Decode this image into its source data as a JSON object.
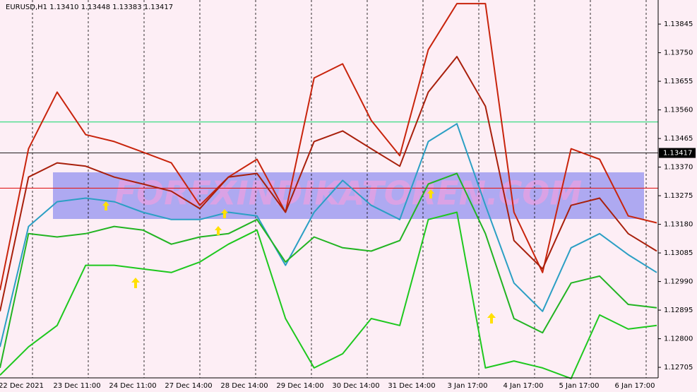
{
  "chart_data": {
    "type": "line",
    "title": "EURUSD,H1  1.13410 1.13448 1.13383 1.13417",
    "watermark": "FOREXINDIKATOREN.COM",
    "x": [
      0,
      1,
      2,
      3,
      4,
      5,
      6,
      7,
      8,
      9,
      10,
      11,
      12,
      13,
      14,
      15,
      16,
      17,
      18,
      19,
      20,
      21,
      22,
      23
    ],
    "xlim": [
      0,
      23
    ],
    "x_labels": [
      "22 Dec 2021",
      "23 Dec 11:00",
      "24 Dec 11:00",
      "27 Dec 14:00",
      "28 Dec 14:00",
      "29 Dec 14:00",
      "30 Dec 14:00",
      "31 Dec 14:00",
      "3 Jan 17:00",
      "4 Jan 17:00",
      "5 Jan 17:00",
      "6 Jan 17:00"
    ],
    "ylim": [
      1.1267,
      1.13925
    ],
    "yticks": [
      1.13845,
      {
        "value": 1.1375,
        "label": "1.13750"
      },
      1.13655,
      {
        "value": 1.1356,
        "label": "1.13560"
      },
      1.13465,
      {
        "value": 1.1337,
        "label": "1.13370"
      },
      1.13275,
      {
        "value": 1.1318,
        "label": "1.13180"
      },
      1.13085,
      {
        "value": 1.1299,
        "label": "1.12990"
      },
      1.12895,
      {
        "value": 1.128,
        "label": "1.12800"
      },
      1.12705
    ],
    "current_price": 1.13417,
    "levels": [
      {
        "value": 1.1352,
        "color": "#3ddc84"
      },
      {
        "value": 1.133,
        "color": "#e02020"
      }
    ],
    "series": [
      {
        "color": "#c8240c",
        "values": [
          1.12961,
          1.13431,
          1.13619,
          1.13478,
          1.13455,
          1.1342,
          1.13384,
          1.13243,
          1.13337,
          1.13396,
          1.1322,
          1.13666,
          1.13713,
          1.13525,
          1.13408,
          1.1376,
          1.13913,
          1.13913,
          1.1322,
          1.1302,
          1.13431,
          1.13396,
          1.13208,
          1.13185
        ]
      },
      {
        "color": "#a8200c",
        "values": [
          1.12891,
          1.13337,
          1.13384,
          1.13373,
          1.13337,
          1.13314,
          1.1329,
          1.13232,
          1.13337,
          1.13349,
          1.1322,
          1.13455,
          1.1349,
          1.13431,
          1.13373,
          1.13619,
          1.13737,
          1.13572,
          1.13126,
          1.13032,
          1.13243,
          1.13267,
          1.13149,
          1.13091
        ]
      },
      {
        "color": "#2b9fc4",
        "values": [
          1.12773,
          1.13173,
          1.13255,
          1.13267,
          1.13255,
          1.1322,
          1.13196,
          1.13196,
          1.1322,
          1.13208,
          1.13044,
          1.1322,
          1.13326,
          1.13243,
          1.13196,
          1.13455,
          1.13514,
          1.13243,
          1.12985,
          1.12891,
          1.13102,
          1.13149,
          1.13079,
          1.1302
        ]
      },
      {
        "color": "#22b422",
        "values": [
          1.12703,
          1.13149,
          1.13138,
          1.13149,
          1.13173,
          1.13161,
          1.13114,
          1.13138,
          1.13149,
          1.13196,
          1.13055,
          1.13138,
          1.13102,
          1.13091,
          1.13126,
          1.13314,
          1.13349,
          1.13149,
          1.12867,
          1.1282,
          1.12985,
          1.13008,
          1.12914,
          1.12903
        ]
      },
      {
        "color": "#1ec81e",
        "values": [
          1.12679,
          1.12773,
          1.12844,
          1.13044,
          1.13044,
          1.13032,
          1.1302,
          1.13055,
          1.13114,
          1.13161,
          1.12867,
          1.12703,
          1.1275,
          1.12867,
          1.12844,
          1.13196,
          1.1322,
          1.12703,
          1.12726,
          1.12703,
          1.12668,
          1.12879,
          1.12832,
          1.12844
        ]
      }
    ]
  }
}
